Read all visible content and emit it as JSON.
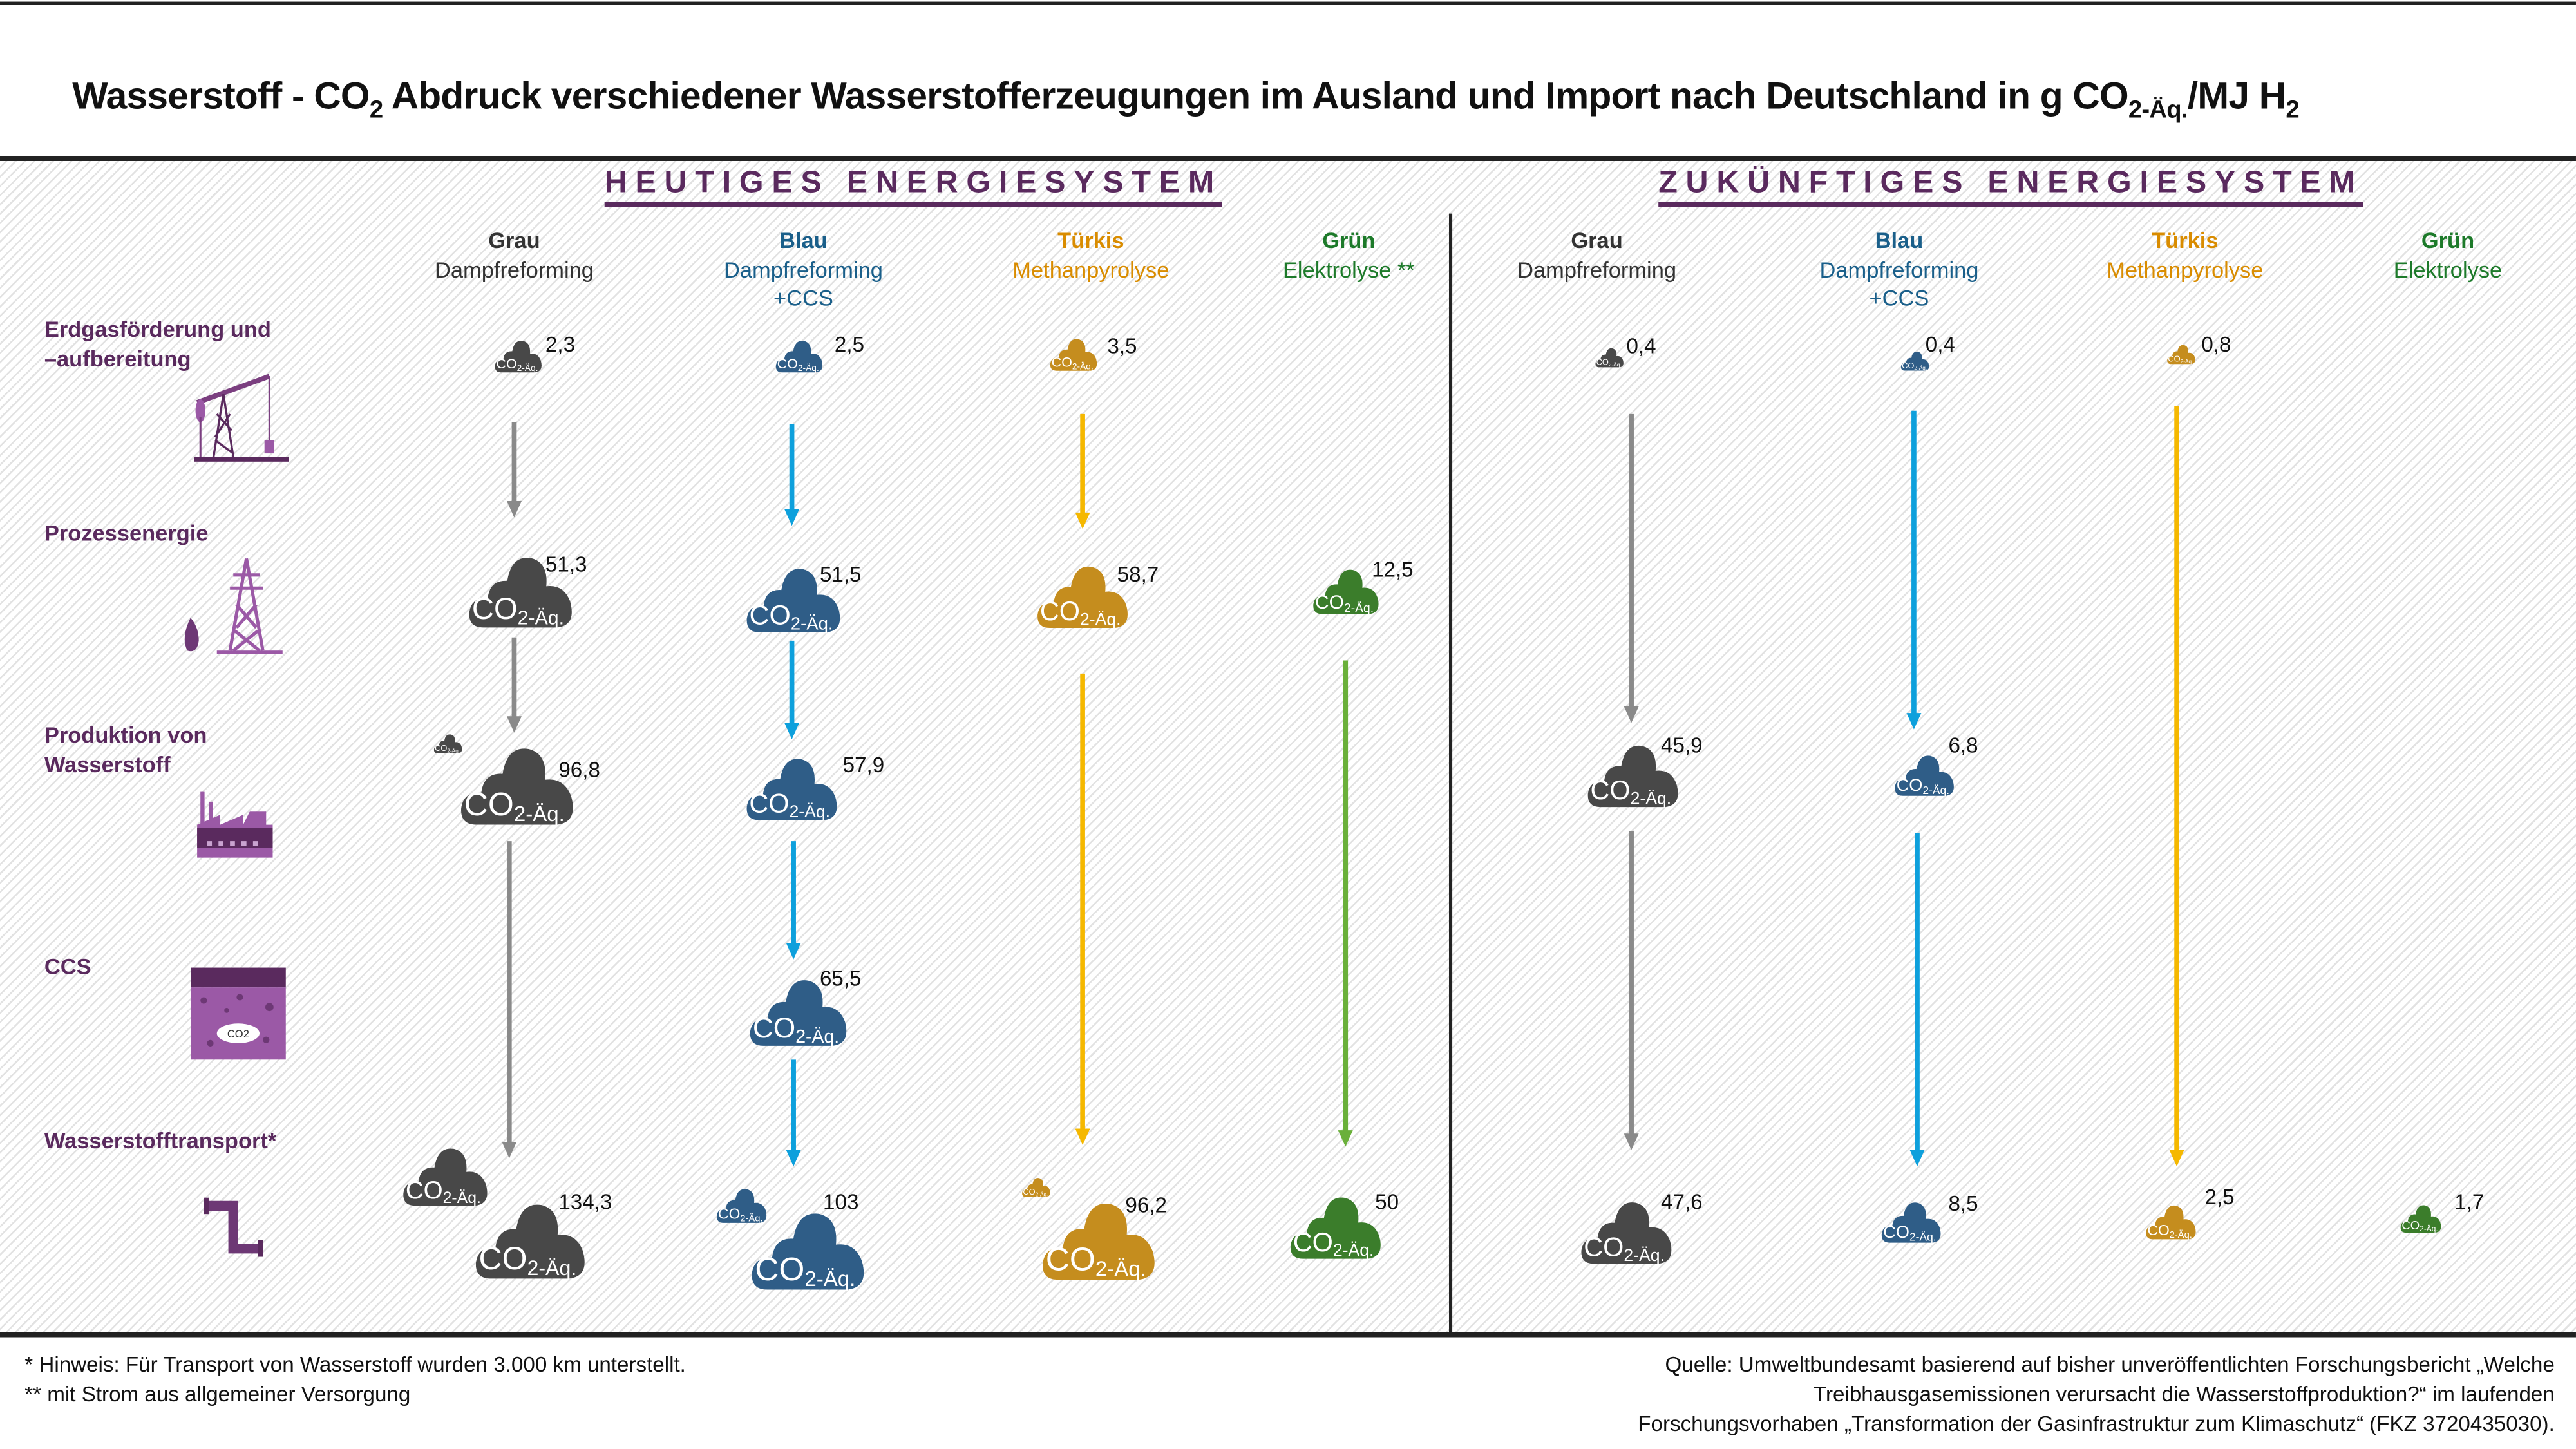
{
  "title": {
    "main": "Wasserstoff - CO",
    "sub1": "2",
    "mid": " Abdruck verschiedener Wasserstofferzeugungen im Ausland und Import nach Deutschland in g CO",
    "sub2": "2-Äq.",
    "end": "/MJ H",
    "sub3": "2"
  },
  "cloud_label": {
    "co": "CO",
    "sub": "2-Äq."
  },
  "sections": {
    "heute": {
      "title": "HEUTIGES ENERGIESYSTEM",
      "columns": [
        {
          "name": "Grau",
          "process": "Dampfreforming",
          "extra": "",
          "color": "#333333",
          "values": [
            "2,3",
            "51,3",
            "96,8",
            "134,3"
          ]
        },
        {
          "name": "Blau",
          "process": "Dampfreforming",
          "extra": "+CCS",
          "color": "#1a5f8a",
          "values": [
            "2,5",
            "51,5",
            "57,9",
            "65,5",
            "103"
          ]
        },
        {
          "name": "Türkis",
          "process": "Methanpyrolyse",
          "extra": "",
          "color": "#d98c00",
          "values": [
            "3,5",
            "58,7",
            "96,2"
          ]
        },
        {
          "name": "Grün",
          "process": "Elektrolyse **",
          "extra": "",
          "color": "#1d7a2a",
          "values": [
            "12,5",
            "50"
          ]
        }
      ]
    },
    "zukunft": {
      "title": "ZUKÜNFTIGES ENERGIESYSTEM",
      "columns": [
        {
          "name": "Grau",
          "process": "Dampfreforming",
          "extra": "",
          "color": "#333333",
          "values": [
            "0,4",
            "45,9",
            "47,6"
          ]
        },
        {
          "name": "Blau",
          "process": "Dampfreforming",
          "extra": "+CCS",
          "color": "#1a5f8a",
          "values": [
            "0,4",
            "6,8",
            "8,5"
          ]
        },
        {
          "name": "Türkis",
          "process": "Methanpyrolyse",
          "extra": "",
          "color": "#d98c00",
          "values": [
            "0,8",
            "2,5"
          ]
        },
        {
          "name": "Grün",
          "process": "Elektrolyse",
          "extra": "",
          "color": "#1d7a2a",
          "values": [
            "1,7"
          ]
        }
      ]
    }
  },
  "rows": [
    {
      "label1": "Erdgasförderung und",
      "label2": "–aufbereitung",
      "icon": "oil-pump-icon"
    },
    {
      "label1": "Prozessenergie",
      "label2": "",
      "icon": "power-pylon-icon"
    },
    {
      "label1": "Produktion von",
      "label2": "Wasserstoff",
      "icon": "factory-icon"
    },
    {
      "label1": "CCS",
      "label2": "",
      "icon": "underground-storage-icon",
      "icon_text": "CO2"
    },
    {
      "label1": "Wasserstofftransport*",
      "label2": "",
      "icon": "pipeline-icon"
    }
  ],
  "colors": {
    "cloud": {
      "Grau": "#484848",
      "Blau": "#2f5d87",
      "Türkis": "#c58d1e",
      "Grün": "#3b7d2b"
    },
    "arrow": {
      "Grau": "#8a8a8a",
      "Blau": "#0ea0dc",
      "Türkis": "#f5b800",
      "Grün": "#6ab03a"
    },
    "accent": "#5a2a5e"
  },
  "footnotes": {
    "note1": "* Hinweis: Für Transport von Wasserstoff wurden 3.000 km unterstellt.",
    "note2": "** mit Strom aus allgemeiner Versorgung",
    "source1": "Quelle: Umweltbundesamt basierend auf bisher unveröffentlichten Forschungsbericht „Welche",
    "source2": "Treibhausgasemissionen verursacht die Wasserstoffproduktion?“ im laufenden",
    "source3": "Forschungsvorhaben „Transformation der Gasinfrastruktur zum Klimaschutz“ (FKZ 3720435030)."
  }
}
